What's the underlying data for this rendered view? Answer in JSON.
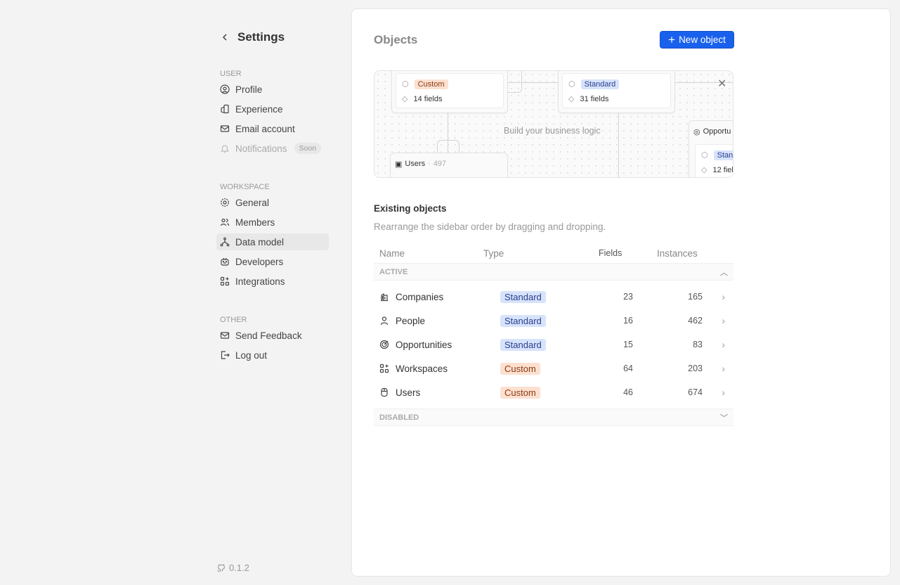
{
  "sidebar": {
    "title": "Settings",
    "sections": [
      {
        "label": "User",
        "items": [
          {
            "label": "Profile",
            "icon": "user-circle-icon"
          },
          {
            "label": "Experience",
            "icon": "color-swatch-icon"
          },
          {
            "label": "Email account",
            "icon": "mail-icon"
          },
          {
            "label": "Notifications",
            "icon": "bell-icon",
            "badge": "Soon",
            "disabled": true
          }
        ]
      },
      {
        "label": "Workspace",
        "items": [
          {
            "label": "General",
            "icon": "gear-icon"
          },
          {
            "label": "Members",
            "icon": "users-icon"
          },
          {
            "label": "Data model",
            "icon": "hierarchy-icon",
            "active": true
          },
          {
            "label": "Developers",
            "icon": "robot-icon"
          },
          {
            "label": "Integrations",
            "icon": "apps-icon"
          }
        ]
      },
      {
        "label": "Other",
        "items": [
          {
            "label": "Send Feedback",
            "icon": "mail-icon"
          },
          {
            "label": "Log out",
            "icon": "logout-icon"
          }
        ]
      }
    ],
    "version": "0.1.2"
  },
  "main": {
    "title": "Objects",
    "new_button": "New object",
    "banner": {
      "text": "Build your business logic",
      "nodes": [
        {
          "tag": "Custom",
          "fields": "14 fields"
        },
        {
          "tag": "Standard",
          "fields": "31 fields"
        },
        {
          "name": "Users",
          "count": "497"
        },
        {
          "name": "Opportu",
          "tag": "Stand",
          "fields": "12 fiel"
        }
      ]
    },
    "existing": {
      "title": "Existing objects",
      "description": "Rearrange the sidebar order by dragging and dropping."
    },
    "table": {
      "headers": [
        "Name",
        "Type",
        "Fields",
        "Instances"
      ],
      "groups": {
        "active": "ACTIVE",
        "disabled": "DISABLED"
      },
      "rows": [
        {
          "name": "Companies",
          "type": "Standard",
          "fields": "23",
          "instances": "165",
          "icon": "building-icon"
        },
        {
          "name": "People",
          "type": "Standard",
          "fields": "16",
          "instances": "462",
          "icon": "user-icon"
        },
        {
          "name": "Opportunities",
          "type": "Standard",
          "fields": "15",
          "instances": "83",
          "icon": "target-icon"
        },
        {
          "name": "Workspaces",
          "type": "Custom",
          "fields": "64",
          "instances": "203",
          "icon": "apps-icon"
        },
        {
          "name": "Users",
          "type": "Custom",
          "fields": "46",
          "instances": "674",
          "icon": "mouse-icon"
        }
      ]
    }
  },
  "colors": {
    "accent": "#1961ed",
    "standard_tag_bg": "#d7e3fb",
    "custom_tag_bg": "#fde0cf"
  }
}
